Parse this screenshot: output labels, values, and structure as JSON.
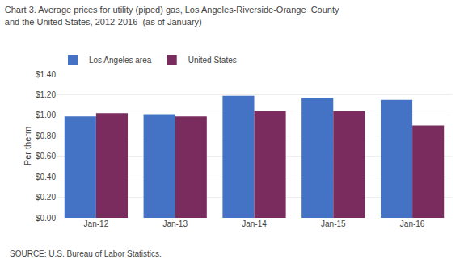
{
  "chart_data": {
    "type": "bar",
    "title": "Chart 3. Average prices for utility (piped) gas, Los Angeles-Riverside-Orange  County",
    "subtitle": "and the United States, 2012-2016  (as of January)",
    "ylabel": "Per therm",
    "annotations": [
      "SOURCE: U.S. Bureau of Labor Statistics."
    ],
    "categories": [
      "Jan-12",
      "Jan-13",
      "Jan-14",
      "Jan-15",
      "Jan-16"
    ],
    "series": [
      {
        "name": "Los Angeles area",
        "color": "#4472C4",
        "values": [
          0.99,
          1.01,
          1.19,
          1.17,
          1.15
        ]
      },
      {
        "name": "United States",
        "color": "#7B2C5E",
        "values": [
          1.02,
          0.99,
          1.04,
          1.04,
          0.9
        ]
      }
    ],
    "ylim": [
      0,
      1.4
    ],
    "yticks": [
      {
        "value": 0.0,
        "label": "$0.00"
      },
      {
        "value": 0.2,
        "label": "$0.20"
      },
      {
        "value": 0.4,
        "label": "$0.40"
      },
      {
        "value": 0.6,
        "label": "$0.60"
      },
      {
        "value": 0.8,
        "label": "$0.80"
      },
      {
        "value": 1.0,
        "label": "$1.00"
      },
      {
        "value": 1.2,
        "label": "$1.20"
      },
      {
        "value": 1.4,
        "label": "$1.40"
      }
    ],
    "grid": true,
    "legend": "upper left"
  }
}
